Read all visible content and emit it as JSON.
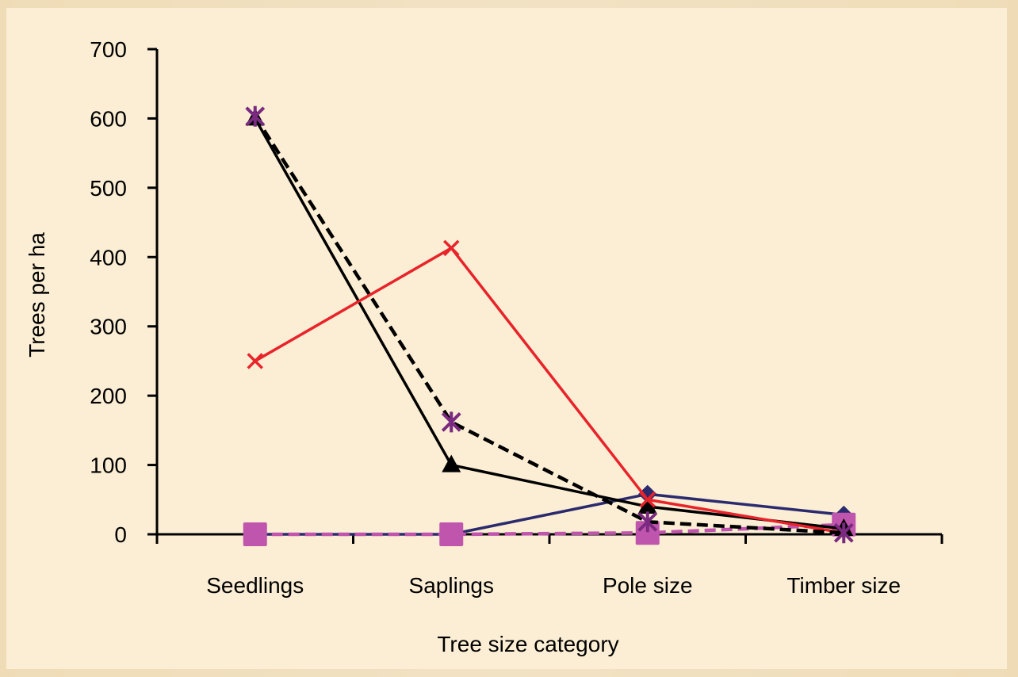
{
  "chart_data": {
    "type": "line",
    "title": "",
    "xlabel": "Tree size category",
    "ylabel": "Trees per ha",
    "ylim": [
      0,
      700
    ],
    "yticks": [
      "0",
      "100",
      "200",
      "300",
      "400",
      "500",
      "600",
      "700"
    ],
    "categories": [
      "Seedlings",
      "Saplings",
      "Pole size",
      "Timber size"
    ],
    "grid": false,
    "legend": "none",
    "series": [
      {
        "values": [
          0,
          0,
          58,
          28
        ],
        "color": "#2b2a6e",
        "marker": "diamond",
        "dash": "solid"
      },
      {
        "values": [
          0,
          0,
          2,
          14
        ],
        "color": "#c055ad",
        "marker": "square",
        "dash": "dashed"
      },
      {
        "values": [
          600,
          100,
          40,
          8
        ],
        "color": "#000000",
        "marker": "triangle",
        "dash": "solid"
      },
      {
        "values": [
          250,
          413,
          50,
          2
        ],
        "color": "#e8232a",
        "marker": "x",
        "dash": "solid"
      },
      {
        "values": [
          603,
          162,
          18,
          2
        ],
        "color": "#000000",
        "marker": "asterisk",
        "dash": "dashed",
        "marker_color": "#7a2a80"
      }
    ]
  }
}
